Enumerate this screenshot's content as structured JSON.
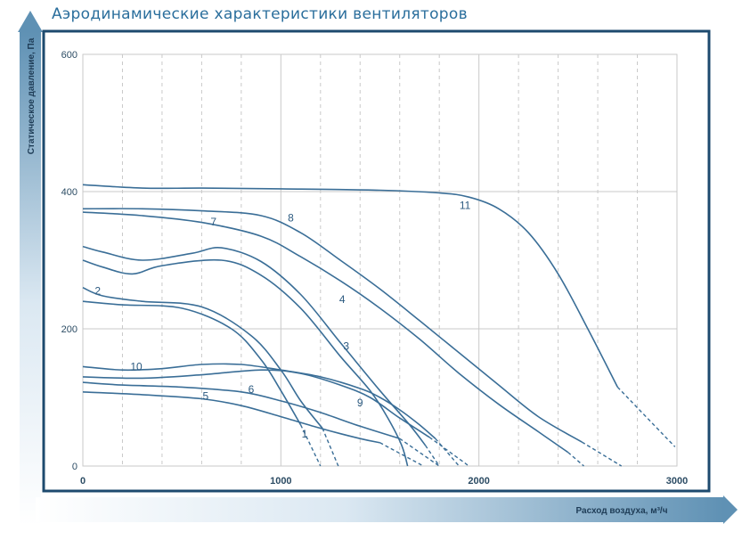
{
  "title": "Аэродинамические характеристики вентиляторов",
  "colors": {
    "curve": "#3a6e97",
    "frame": "#1d4a6e",
    "arrow": "#5f91b4",
    "grid": "#c9c9c9"
  },
  "chart_data": {
    "type": "line",
    "xlabel": "Расход воздуха, м³/ч",
    "ylabel": "Статическое давление, Па",
    "xlim": [
      0,
      3000
    ],
    "ylim": [
      0,
      600
    ],
    "xticks": [
      0,
      1000,
      2000,
      3000
    ],
    "yticks": [
      0,
      200,
      400,
      600
    ],
    "grid": true,
    "series": [
      {
        "name": "1",
        "x": [
          0,
          200,
          500,
          750,
          900,
          1000,
          1100
        ],
        "y": [
          240,
          235,
          230,
          200,
          155,
          110,
          60
        ],
        "x_dashed": [
          1100,
          1200
        ],
        "y_dashed": [
          60,
          0
        ]
      },
      {
        "name": "2",
        "x": [
          0,
          100,
          300,
          600,
          850,
          1000,
          1100,
          1210
        ],
        "y": [
          260,
          248,
          240,
          232,
          190,
          140,
          95,
          55
        ],
        "x_dashed": [
          1210,
          1290
        ],
        "y_dashed": [
          55,
          0
        ]
      },
      {
        "name": "3",
        "x": [
          0,
          100,
          250,
          400,
          700,
          900,
          1100,
          1300,
          1450,
          1540,
          1610,
          1640
        ],
        "y": [
          300,
          290,
          280,
          292,
          300,
          278,
          230,
          160,
          110,
          70,
          30,
          0
        ]
      },
      {
        "name": "4",
        "x": [
          0,
          100,
          300,
          550,
          700,
          900,
          1100,
          1300,
          1500,
          1650,
          1730
        ],
        "y": [
          320,
          312,
          300,
          310,
          318,
          298,
          250,
          180,
          110,
          60,
          30
        ],
        "x_dashed": [
          1730,
          1800
        ],
        "y_dashed": [
          30,
          0
        ]
      },
      {
        "name": "5",
        "x": [
          0,
          300,
          600,
          800,
          1000,
          1200,
          1400,
          1500
        ],
        "y": [
          108,
          104,
          98,
          88,
          72,
          55,
          40,
          34
        ],
        "x_dashed": [
          1500,
          1720
        ],
        "y_dashed": [
          34,
          0
        ]
      },
      {
        "name": "6",
        "x": [
          0,
          200,
          500,
          800,
          1000,
          1200,
          1400,
          1600
        ],
        "y": [
          122,
          118,
          115,
          108,
          95,
          78,
          58,
          40
        ],
        "x_dashed": [
          1600,
          1800
        ],
        "y_dashed": [
          40,
          0
        ]
      },
      {
        "name": "7",
        "x": [
          0,
          300,
          600,
          900,
          1100,
          1300,
          1500,
          1700,
          1900,
          2100,
          2300,
          2450
        ],
        "y": [
          370,
          365,
          355,
          335,
          305,
          270,
          230,
          185,
          135,
          90,
          50,
          20
        ],
        "x_dashed": [
          2450,
          2530
        ],
        "y_dashed": [
          20,
          0
        ]
      },
      {
        "name": "8",
        "x": [
          0,
          300,
          600,
          900,
          1100,
          1300,
          1500,
          1700,
          1900,
          2100,
          2300,
          2520
        ],
        "y": [
          375,
          375,
          372,
          365,
          340,
          300,
          258,
          212,
          165,
          118,
          72,
          35
        ],
        "x_dashed": [
          2520,
          2720
        ],
        "y_dashed": [
          35,
          0
        ]
      },
      {
        "name": "9",
        "x": [
          0,
          300,
          600,
          900,
          1100,
          1300,
          1450,
          1600,
          1750
        ],
        "y": [
          130,
          128,
          133,
          140,
          135,
          118,
          100,
          70,
          42
        ],
        "x_dashed": [
          1750,
          1950
        ],
        "y_dashed": [
          42,
          0
        ]
      },
      {
        "name": "10",
        "x": [
          0,
          200,
          400,
          600,
          800,
          1000,
          1200,
          1400,
          1500,
          1600,
          1700,
          1780
        ],
        "y": [
          145,
          140,
          142,
          148,
          148,
          140,
          130,
          113,
          100,
          82,
          60,
          40
        ],
        "x_dashed": [
          1780,
          1900
        ],
        "y_dashed": [
          40,
          0
        ]
      },
      {
        "name": "11",
        "x": [
          0,
          300,
          600,
          1000,
          1500,
          1800,
          1950,
          2100,
          2250,
          2400,
          2550,
          2700
        ],
        "y": [
          410,
          405,
          405,
          404,
          402,
          398,
          392,
          375,
          340,
          280,
          200,
          115
        ],
        "x_dashed": [
          2700,
          2990
        ],
        "y_dashed": [
          115,
          28
        ]
      }
    ],
    "labels": [
      {
        "text": "1",
        "x": 1120,
        "y": 47
      },
      {
        "text": "2",
        "x": 75,
        "y": 255
      },
      {
        "text": "3",
        "x": 1330,
        "y": 175
      },
      {
        "text": "4",
        "x": 1310,
        "y": 243
      },
      {
        "text": "5",
        "x": 620,
        "y": 102
      },
      {
        "text": "6",
        "x": 850,
        "y": 112
      },
      {
        "text": "7",
        "x": 660,
        "y": 356
      },
      {
        "text": "8",
        "x": 1050,
        "y": 362
      },
      {
        "text": "9",
        "x": 1400,
        "y": 92
      },
      {
        "text": "10",
        "x": 270,
        "y": 145
      },
      {
        "text": "11",
        "x": 1930,
        "y": 380
      }
    ]
  }
}
